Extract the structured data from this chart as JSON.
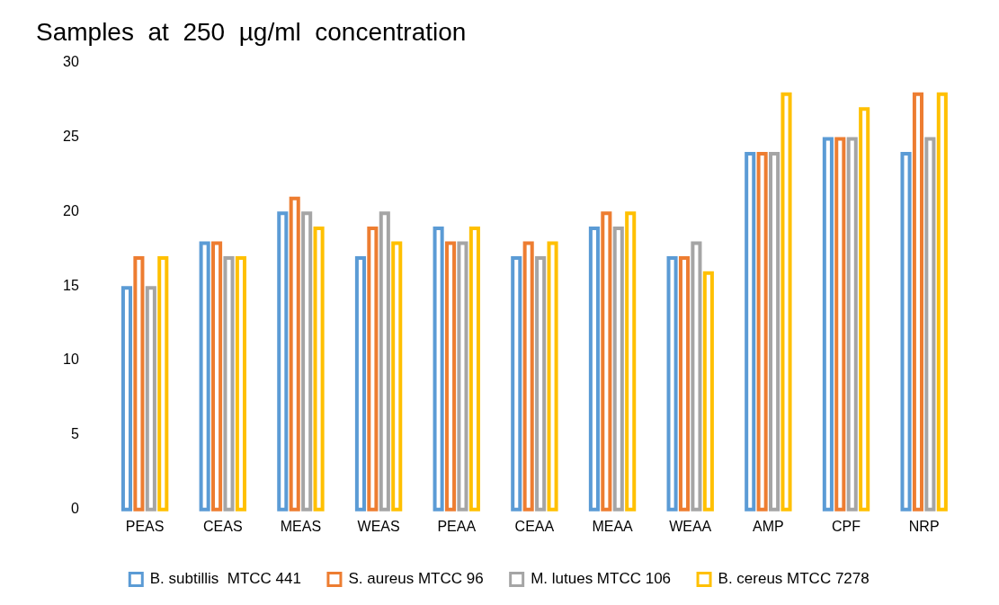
{
  "chart_data": {
    "type": "bar",
    "title": "Samples  at  250  µg/ml  concentration",
    "categories": [
      "PEAS",
      "CEAS",
      "MEAS",
      "WEAS",
      "PEAA",
      "CEAA",
      "MEAA",
      "WEAA",
      "AMP",
      "CPF",
      "NRP"
    ],
    "series": [
      {
        "name": "B. subtillis  MTCC 441",
        "color": "#5b9bd5",
        "values": [
          15,
          18,
          20,
          17,
          19,
          17,
          19,
          17,
          24,
          25,
          24
        ]
      },
      {
        "name": "S. aureus MTCC 96",
        "color": "#ed7d31",
        "values": [
          17,
          18,
          21,
          19,
          18,
          18,
          20,
          17,
          24,
          25,
          28
        ]
      },
      {
        "name": "M. lutues MTCC 106",
        "color": "#a5a5a5",
        "values": [
          15,
          17,
          20,
          20,
          18,
          17,
          19,
          18,
          24,
          25,
          25
        ]
      },
      {
        "name": "B. cereus MTCC 7278",
        "color": "#ffc000",
        "values": [
          17,
          17,
          19,
          18,
          19,
          18,
          20,
          16,
          28,
          27,
          28
        ]
      }
    ],
    "ylim": [
      0,
      30
    ],
    "yticks": [
      0,
      5,
      10,
      15,
      20,
      25,
      30
    ],
    "grid": false,
    "legend": "bottom"
  }
}
